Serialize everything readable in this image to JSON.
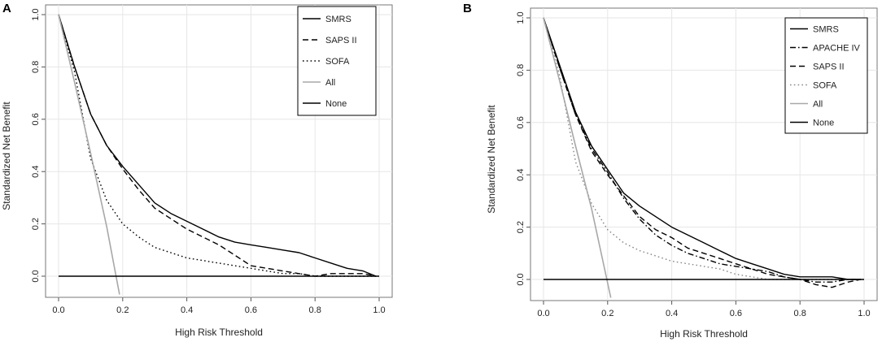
{
  "figure": {
    "panels": [
      "A",
      "B"
    ]
  },
  "chart_data": [
    {
      "panel": "A",
      "type": "line",
      "title": "",
      "xlabel": "High Risk Threshold",
      "ylabel": "Standardized Net Benefit",
      "xlim": [
        0,
        1
      ],
      "ylim": [
        -0.07,
        1.0
      ],
      "xticks": [
        0.0,
        0.2,
        0.4,
        0.6,
        0.8,
        1.0
      ],
      "yticks": [
        0.0,
        0.2,
        0.4,
        0.6,
        0.8,
        1.0
      ],
      "xtick_labels": [
        "0.0",
        "0.2",
        "0.4",
        "0.6",
        "0.8",
        "1.0"
      ],
      "ytick_labels": [
        "0.0",
        "0.2",
        "0.4",
        "0.6",
        "0.8",
        "1.0"
      ],
      "grid": true,
      "legend_position": "top-right",
      "series": [
        {
          "name": "SMRS",
          "style": "solid",
          "color": "#000000",
          "x": [
            0,
            0.05,
            0.1,
            0.15,
            0.2,
            0.25,
            0.3,
            0.35,
            0.4,
            0.45,
            0.5,
            0.55,
            0.6,
            0.65,
            0.7,
            0.75,
            0.8,
            0.85,
            0.9,
            0.95,
            0.99
          ],
          "y": [
            1.0,
            0.8,
            0.62,
            0.5,
            0.42,
            0.35,
            0.28,
            0.24,
            0.21,
            0.18,
            0.15,
            0.13,
            0.12,
            0.11,
            0.1,
            0.09,
            0.07,
            0.05,
            0.03,
            0.02,
            0.0
          ]
        },
        {
          "name": "SAPS II",
          "style": "dashed",
          "color": "#000000",
          "x": [
            0,
            0.05,
            0.1,
            0.15,
            0.2,
            0.25,
            0.3,
            0.35,
            0.4,
            0.45,
            0.5,
            0.55,
            0.6,
            0.65,
            0.7,
            0.75,
            0.8,
            0.85,
            0.9,
            0.95,
            0.99
          ],
          "y": [
            1.0,
            0.8,
            0.62,
            0.5,
            0.41,
            0.33,
            0.26,
            0.22,
            0.18,
            0.15,
            0.12,
            0.08,
            0.04,
            0.03,
            0.02,
            0.01,
            0.0,
            0.01,
            0.01,
            0.01,
            0.0
          ]
        },
        {
          "name": "SOFA",
          "style": "dotted",
          "color": "#000000",
          "x": [
            0,
            0.05,
            0.1,
            0.15,
            0.2,
            0.25,
            0.3,
            0.35,
            0.4,
            0.45,
            0.5,
            0.55,
            0.6,
            0.65,
            0.7,
            0.75,
            0.8,
            0.85,
            0.9,
            0.95,
            0.99
          ],
          "y": [
            1.0,
            0.78,
            0.45,
            0.29,
            0.2,
            0.15,
            0.11,
            0.09,
            0.07,
            0.06,
            0.05,
            0.04,
            0.03,
            0.02,
            0.01,
            0.01,
            0.0,
            0.0,
            0.0,
            0.0,
            0.0
          ]
        },
        {
          "name": "All",
          "style": "solid",
          "color": "#a8a8a8",
          "x": [
            0,
            0.05,
            0.1,
            0.15,
            0.19
          ],
          "y": [
            1.0,
            0.74,
            0.47,
            0.19,
            -0.07
          ]
        },
        {
          "name": "None",
          "style": "solid",
          "color": "#000000",
          "x": [
            0,
            1.0
          ],
          "y": [
            0,
            0
          ]
        }
      ]
    },
    {
      "panel": "B",
      "type": "line",
      "title": "",
      "xlabel": "High Risk Threshold",
      "ylabel": "Standardized Net Benefit",
      "xlim": [
        0,
        1
      ],
      "ylim": [
        -0.07,
        1.0
      ],
      "xticks": [
        0.0,
        0.2,
        0.4,
        0.6,
        0.8,
        1.0
      ],
      "yticks": [
        0.0,
        0.2,
        0.4,
        0.6,
        0.8,
        1.0
      ],
      "xtick_labels": [
        "0.0",
        "0.2",
        "0.4",
        "0.6",
        "0.8",
        "1.0"
      ],
      "ytick_labels": [
        "0.0",
        "0.2",
        "0.4",
        "0.6",
        "0.8",
        "1.0"
      ],
      "grid": true,
      "legend_position": "top-right",
      "series": [
        {
          "name": "SMRS",
          "style": "solid",
          "color": "#000000",
          "x": [
            0,
            0.05,
            0.1,
            0.15,
            0.2,
            0.25,
            0.3,
            0.35,
            0.4,
            0.45,
            0.5,
            0.55,
            0.6,
            0.65,
            0.7,
            0.75,
            0.8,
            0.85,
            0.9,
            0.95,
            0.99
          ],
          "y": [
            1.0,
            0.82,
            0.64,
            0.51,
            0.42,
            0.33,
            0.28,
            0.24,
            0.2,
            0.17,
            0.14,
            0.11,
            0.08,
            0.06,
            0.04,
            0.02,
            0.01,
            0.01,
            0.01,
            0.0,
            0.0
          ]
        },
        {
          "name": "APACHE IV",
          "style": "dashdot",
          "color": "#000000",
          "x": [
            0,
            0.05,
            0.1,
            0.15,
            0.2,
            0.25,
            0.3,
            0.35,
            0.4,
            0.45,
            0.5,
            0.55,
            0.6,
            0.65,
            0.7,
            0.75,
            0.8,
            0.85,
            0.9,
            0.95,
            0.99
          ],
          "y": [
            1.0,
            0.81,
            0.63,
            0.5,
            0.41,
            0.31,
            0.23,
            0.17,
            0.13,
            0.1,
            0.08,
            0.06,
            0.05,
            0.04,
            0.03,
            0.01,
            0.0,
            -0.01,
            -0.01,
            0.0,
            0.0
          ]
        },
        {
          "name": "SAPS II",
          "style": "dashed",
          "color": "#000000",
          "x": [
            0,
            0.05,
            0.1,
            0.15,
            0.2,
            0.25,
            0.3,
            0.35,
            0.4,
            0.45,
            0.5,
            0.55,
            0.6,
            0.65,
            0.7,
            0.75,
            0.8,
            0.85,
            0.9,
            0.95,
            0.99
          ],
          "y": [
            1.0,
            0.81,
            0.63,
            0.49,
            0.4,
            0.32,
            0.24,
            0.19,
            0.16,
            0.12,
            0.1,
            0.08,
            0.06,
            0.04,
            0.02,
            0.01,
            0.0,
            -0.02,
            -0.03,
            -0.01,
            0.0
          ]
        },
        {
          "name": "SOFA",
          "style": "dotted",
          "color": "#888888",
          "x": [
            0,
            0.05,
            0.1,
            0.15,
            0.2,
            0.25,
            0.3,
            0.35,
            0.4,
            0.45,
            0.5,
            0.55,
            0.6,
            0.65,
            0.7,
            0.75,
            0.8,
            0.85,
            0.9,
            0.95,
            0.99
          ],
          "y": [
            1.0,
            0.78,
            0.45,
            0.29,
            0.19,
            0.14,
            0.11,
            0.09,
            0.07,
            0.06,
            0.05,
            0.04,
            0.02,
            0.01,
            0.0,
            0.0,
            0.0,
            0.0,
            0.0,
            0.0,
            0.0
          ]
        },
        {
          "name": "All",
          "style": "solid",
          "color": "#a8a8a8",
          "x": [
            0,
            0.05,
            0.1,
            0.15,
            0.21
          ],
          "y": [
            1.0,
            0.76,
            0.51,
            0.27,
            -0.07
          ]
        },
        {
          "name": "None",
          "style": "solid",
          "color": "#000000",
          "x": [
            0,
            1.0
          ],
          "y": [
            0,
            0
          ]
        }
      ]
    }
  ]
}
